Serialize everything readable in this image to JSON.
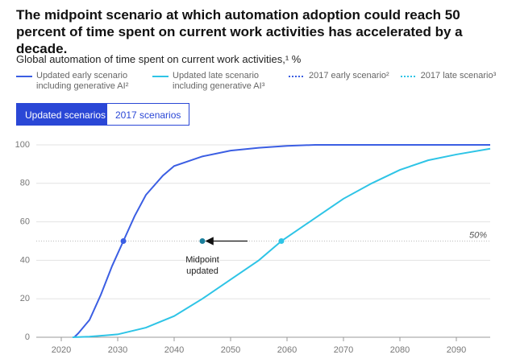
{
  "title": "The midpoint scenario at which automation adoption could reach 50 percent of time spent on current work activities has accelerated by a decade.",
  "tabs": [
    "Updated scenarios",
    "2017 scenarios"
  ],
  "chart_data": {
    "type": "line",
    "subtitle": "Global automation of time spent on current work activities,¹ %",
    "xlim": [
      2015,
      2096
    ],
    "ylim": [
      0,
      100
    ],
    "xticks": [
      2020,
      2030,
      2040,
      2050,
      2060,
      2070,
      2080,
      2090
    ],
    "yticks": [
      0,
      20,
      40,
      60,
      80,
      100
    ],
    "grid": true,
    "series": [
      {
        "name": "Updated early scenario including generative AI²",
        "color": "#3b5ee3",
        "x": [
          2022.3,
          2023,
          2025,
          2027,
          2029,
          2031,
          2033,
          2035,
          2038,
          2040,
          2045,
          2050,
          2055,
          2060,
          2065,
          2096
        ],
        "values": [
          0,
          2,
          9,
          22,
          37,
          50,
          63,
          74,
          84,
          89,
          94,
          97,
          98.5,
          99.5,
          100,
          100
        ]
      },
      {
        "name": "Updated late scenario including generative AI³",
        "color": "#2ec4e6",
        "x": [
          2022,
          2025,
          2030,
          2035,
          2040,
          2045,
          2050,
          2055,
          2059,
          2065,
          2070,
          2075,
          2080,
          2085,
          2090,
          2096
        ],
        "values": [
          0,
          0.3,
          1.5,
          5,
          11,
          20,
          30,
          40,
          50,
          62,
          72,
          80,
          87,
          92,
          95,
          98
        ]
      },
      {
        "name": "2017 early scenario²",
        "color": "#3b5ee3",
        "dashed": true
      },
      {
        "name": "2017 late scenario³",
        "color": "#2ec4e6",
        "dashed": true
      }
    ],
    "reference_line": {
      "value": 50,
      "label": "50%"
    },
    "markers": [
      {
        "x": 2031,
        "y": 50,
        "color": "#3b5ee3"
      },
      {
        "x": 2059,
        "y": 50,
        "color": "#2ec4e6"
      },
      {
        "x": 2045,
        "y": 50,
        "color": "#1a7f9c"
      }
    ],
    "annotation": {
      "text": "Midpoint updated",
      "x": 2045,
      "y": 50,
      "arrow_from": 2053
    }
  }
}
